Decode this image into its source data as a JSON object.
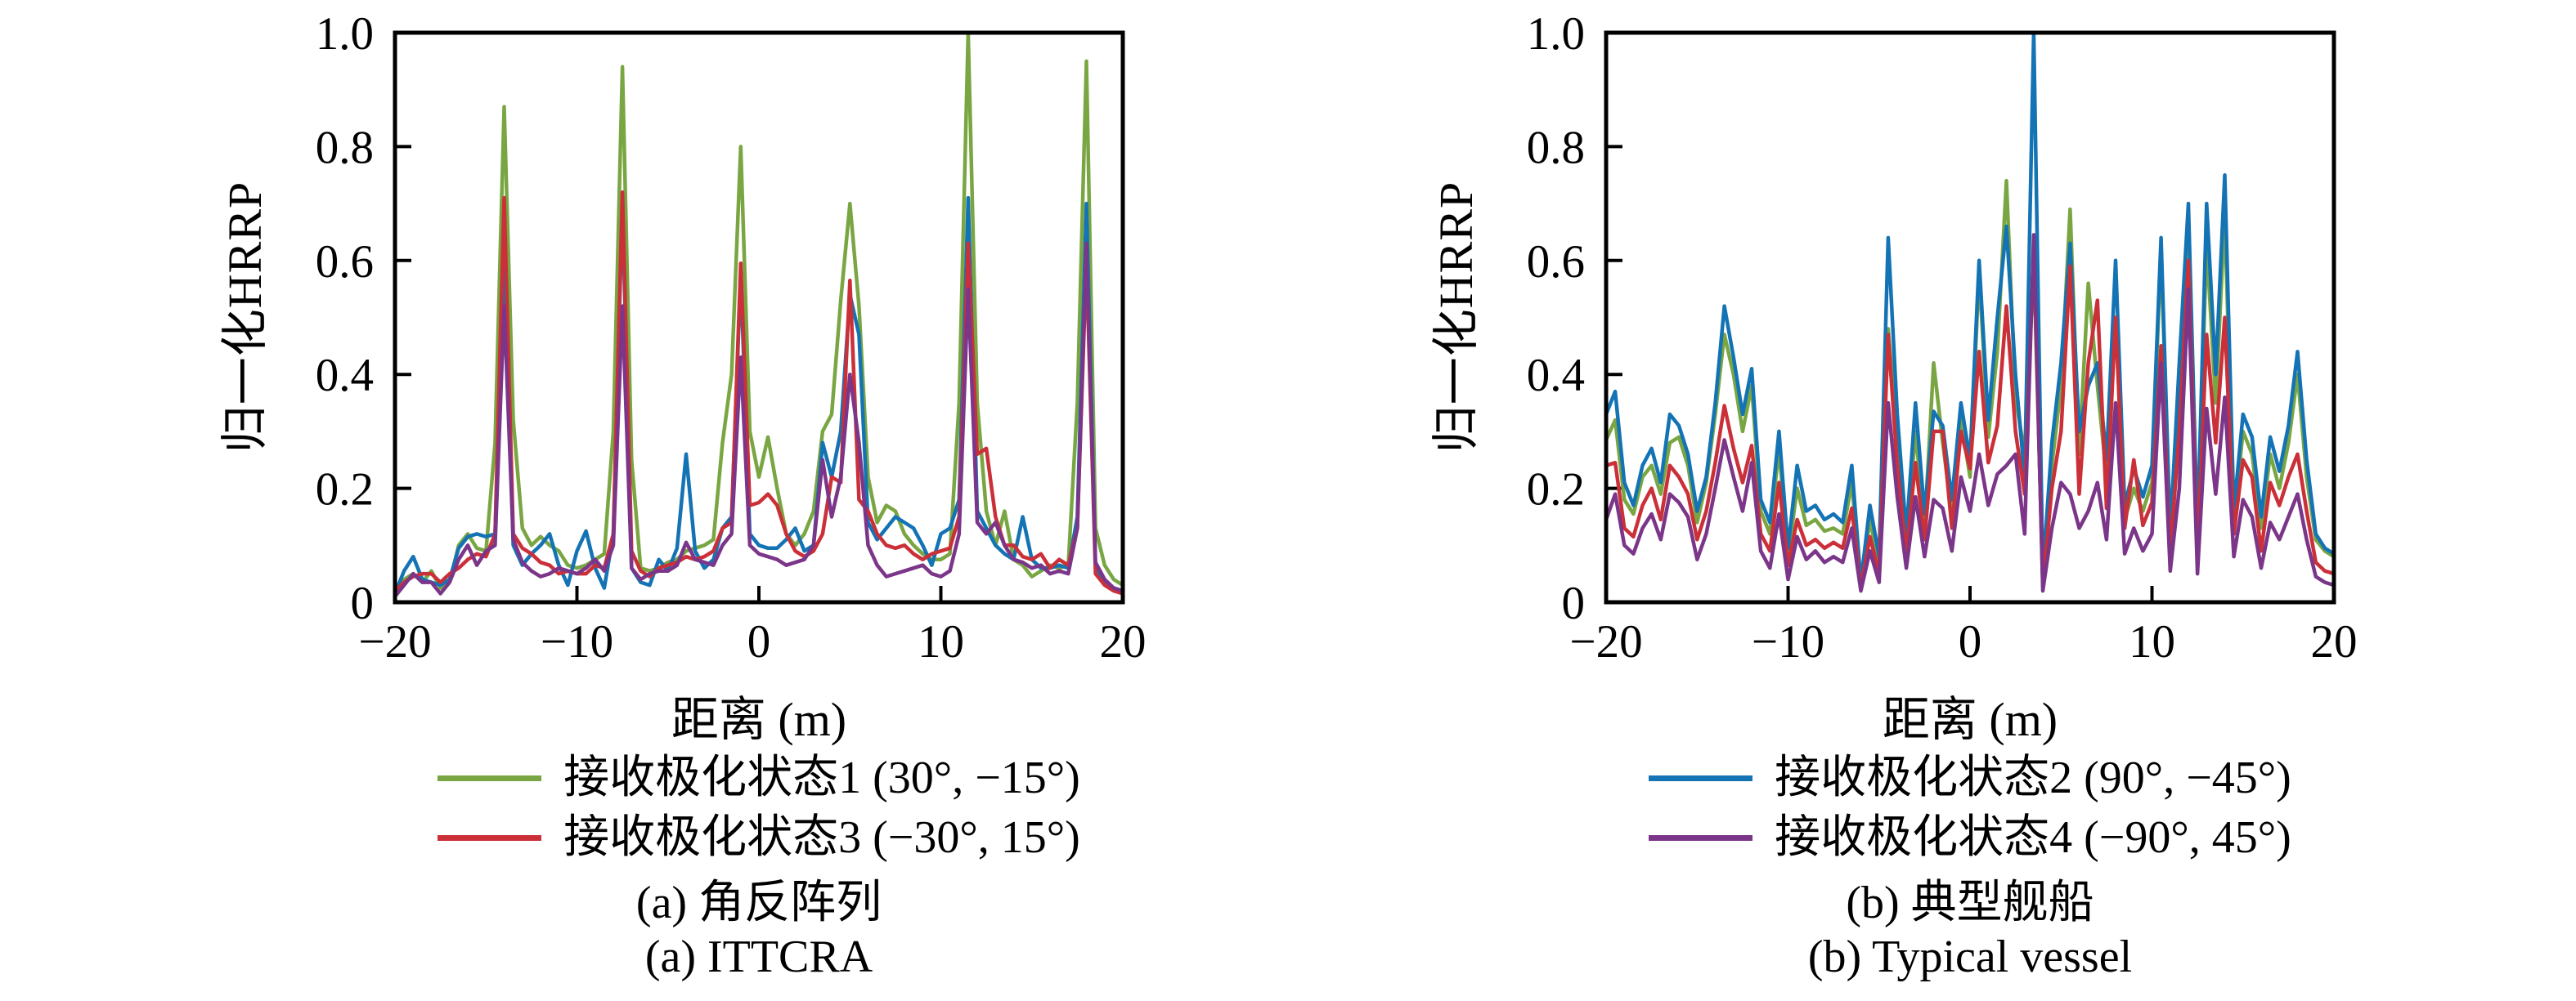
{
  "page": {
    "background": "#ffffff"
  },
  "panels": [
    {
      "ylabel": "归一化HRRP",
      "xlabel": "距离 (m)",
      "caption_line1": "(a) 角反阵列",
      "caption_line2": "(a) ITTCRA"
    },
    {
      "ylabel": "归一化HRRP",
      "xlabel": "距离 (m)",
      "caption_line1": "(b) 典型舰船",
      "caption_line2": "(b) Typical vessel"
    }
  ],
  "chart_data": [
    {
      "type": "line",
      "title": "(a) 角反阵列 / (a) ITTCRA",
      "xlabel": "距离 (m)",
      "ylabel": "归一化HRRP",
      "xlim": [
        -20,
        20
      ],
      "ylim": [
        0,
        1
      ],
      "xticks": [
        -20,
        -10,
        0,
        10,
        20
      ],
      "xtick_labels": [
        "−20",
        "−10",
        "0",
        "10",
        "20"
      ],
      "yticks": [
        0,
        0.2,
        0.4,
        0.6,
        0.8,
        1.0
      ],
      "ytick_labels": [
        "0",
        "0.2",
        "0.4",
        "0.6",
        "0.8",
        "1.0"
      ],
      "grid": false,
      "legend_position": "below",
      "legend_series": [
        0,
        2
      ],
      "x_start": -20,
      "x_step": 0.5,
      "series": [
        {
          "name": "接收极化状态1 (30°, −15°)",
          "color": "#79a642",
          "values": [
            0.01,
            0.04,
            0.05,
            0.035,
            0.055,
            0.025,
            0.035,
            0.1,
            0.12,
            0.095,
            0.09,
            0.28,
            0.87,
            0.32,
            0.13,
            0.1,
            0.115,
            0.1,
            0.09,
            0.065,
            0.06,
            0.065,
            0.075,
            0.085,
            0.3,
            0.94,
            0.25,
            0.06,
            0.055,
            0.06,
            0.07,
            0.075,
            0.09,
            0.095,
            0.1,
            0.11,
            0.28,
            0.4,
            0.8,
            0.3,
            0.22,
            0.29,
            0.2,
            0.12,
            0.1,
            0.12,
            0.16,
            0.3,
            0.33,
            0.53,
            0.7,
            0.52,
            0.22,
            0.14,
            0.17,
            0.16,
            0.12,
            0.1,
            0.085,
            0.075,
            0.075,
            0.085,
            0.35,
            1.0,
            0.35,
            0.16,
            0.1,
            0.16,
            0.075,
            0.065,
            0.045,
            0.055,
            0.065,
            0.06,
            0.065,
            0.35,
            0.95,
            0.13,
            0.065,
            0.04,
            0.03
          ]
        },
        {
          "name": "接收极化状态2 (90°, −45°)",
          "color": "#1473b4",
          "values": [
            0.015,
            0.055,
            0.08,
            0.04,
            0.035,
            0.03,
            0.04,
            0.095,
            0.115,
            0.12,
            0.115,
            0.12,
            0.63,
            0.1,
            0.065,
            0.085,
            0.1,
            0.12,
            0.065,
            0.03,
            0.09,
            0.125,
            0.06,
            0.025,
            0.12,
            0.7,
            0.06,
            0.035,
            0.03,
            0.075,
            0.055,
            0.095,
            0.26,
            0.09,
            0.06,
            0.075,
            0.13,
            0.15,
            0.575,
            0.12,
            0.1,
            0.095,
            0.095,
            0.11,
            0.13,
            0.09,
            0.1,
            0.28,
            0.22,
            0.3,
            0.54,
            0.47,
            0.14,
            0.11,
            0.13,
            0.15,
            0.14,
            0.13,
            0.1,
            0.065,
            0.12,
            0.13,
            0.18,
            0.71,
            0.16,
            0.13,
            0.1,
            0.085,
            0.075,
            0.15,
            0.075,
            0.06,
            0.06,
            0.065,
            0.06,
            0.15,
            0.7,
            0.06,
            0.035,
            0.025,
            0.02
          ]
        },
        {
          "name": "接收极化状态3 (−30°, 15°)",
          "color": "#cb3039",
          "values": [
            0.02,
            0.035,
            0.045,
            0.05,
            0.05,
            0.035,
            0.05,
            0.06,
            0.075,
            0.085,
            0.08,
            0.12,
            0.71,
            0.12,
            0.095,
            0.085,
            0.07,
            0.065,
            0.05,
            0.055,
            0.05,
            0.05,
            0.065,
            0.06,
            0.12,
            0.72,
            0.09,
            0.055,
            0.045,
            0.06,
            0.065,
            0.07,
            0.08,
            0.075,
            0.08,
            0.09,
            0.13,
            0.14,
            0.595,
            0.17,
            0.175,
            0.19,
            0.17,
            0.12,
            0.09,
            0.08,
            0.09,
            0.12,
            0.22,
            0.21,
            0.565,
            0.18,
            0.16,
            0.12,
            0.1,
            0.095,
            0.1,
            0.085,
            0.075,
            0.085,
            0.09,
            0.095,
            0.15,
            0.63,
            0.26,
            0.27,
            0.15,
            0.1,
            0.1,
            0.08,
            0.075,
            0.085,
            0.06,
            0.075,
            0.065,
            0.13,
            0.6,
            0.05,
            0.03,
            0.02,
            0.015
          ]
        },
        {
          "name": "接收极化状态4 (−90°, 45°)",
          "color": "#7b3589",
          "values": [
            0.01,
            0.03,
            0.05,
            0.035,
            0.035,
            0.015,
            0.035,
            0.075,
            0.1,
            0.065,
            0.09,
            0.1,
            0.52,
            0.11,
            0.07,
            0.055,
            0.045,
            0.05,
            0.06,
            0.055,
            0.05,
            0.06,
            0.075,
            0.055,
            0.1,
            0.52,
            0.06,
            0.04,
            0.05,
            0.055,
            0.055,
            0.065,
            0.105,
            0.075,
            0.07,
            0.065,
            0.1,
            0.12,
            0.43,
            0.1,
            0.085,
            0.08,
            0.075,
            0.065,
            0.07,
            0.075,
            0.1,
            0.25,
            0.15,
            0.22,
            0.4,
            0.28,
            0.1,
            0.065,
            0.045,
            0.05,
            0.055,
            0.06,
            0.065,
            0.05,
            0.045,
            0.055,
            0.12,
            0.55,
            0.14,
            0.12,
            0.14,
            0.1,
            0.075,
            0.07,
            0.06,
            0.065,
            0.05,
            0.055,
            0.05,
            0.13,
            0.63,
            0.07,
            0.04,
            0.025,
            0.02
          ]
        }
      ]
    },
    {
      "type": "line",
      "title": "(b) 典型舰船 / (b) Typical vessel",
      "xlabel": "距离 (m)",
      "ylabel": "归一化HRRP",
      "xlim": [
        -20,
        20
      ],
      "ylim": [
        0,
        1
      ],
      "xticks": [
        -20,
        -10,
        0,
        10,
        20
      ],
      "xtick_labels": [
        "−20",
        "−10",
        "0",
        "10",
        "20"
      ],
      "yticks": [
        0,
        0.2,
        0.4,
        0.6,
        0.8,
        1.0
      ],
      "ytick_labels": [
        "0",
        "0.2",
        "0.4",
        "0.6",
        "0.8",
        "1.0"
      ],
      "grid": false,
      "legend_position": "below",
      "legend_series": [
        1,
        3
      ],
      "x_start": -20,
      "x_step": 0.5,
      "series": [
        {
          "name": "接收极化状态1 (30°, −15°)",
          "color": "#79a642",
          "values": [
            0.285,
            0.32,
            0.18,
            0.155,
            0.22,
            0.24,
            0.19,
            0.28,
            0.29,
            0.24,
            0.14,
            0.21,
            0.33,
            0.47,
            0.4,
            0.3,
            0.38,
            0.16,
            0.12,
            0.27,
            0.08,
            0.2,
            0.135,
            0.145,
            0.125,
            0.13,
            0.12,
            0.21,
            0.03,
            0.145,
            0.065,
            0.48,
            0.29,
            0.1,
            0.3,
            0.13,
            0.42,
            0.28,
            0.155,
            0.32,
            0.22,
            0.58,
            0.29,
            0.44,
            0.74,
            0.36,
            0.26,
            0.6,
            0.04,
            0.24,
            0.38,
            0.69,
            0.26,
            0.56,
            0.38,
            0.22,
            0.5,
            0.145,
            0.2,
            0.16,
            0.21,
            0.62,
            0.1,
            0.35,
            0.62,
            0.1,
            0.63,
            0.35,
            0.68,
            0.14,
            0.3,
            0.26,
            0.13,
            0.26,
            0.2,
            0.28,
            0.4,
            0.22,
            0.11,
            0.09,
            0.08
          ]
        },
        {
          "name": "接收极化状态2 (90°, −45°)",
          "color": "#1473b4",
          "values": [
            0.33,
            0.37,
            0.21,
            0.17,
            0.24,
            0.27,
            0.21,
            0.33,
            0.31,
            0.26,
            0.16,
            0.22,
            0.35,
            0.52,
            0.43,
            0.33,
            0.41,
            0.18,
            0.14,
            0.3,
            0.095,
            0.24,
            0.16,
            0.17,
            0.145,
            0.155,
            0.14,
            0.24,
            0.035,
            0.17,
            0.08,
            0.64,
            0.33,
            0.12,
            0.35,
            0.155,
            0.335,
            0.31,
            0.18,
            0.35,
            0.25,
            0.6,
            0.32,
            0.5,
            0.66,
            0.4,
            0.22,
            1.0,
            0.05,
            0.28,
            0.42,
            0.63,
            0.3,
            0.38,
            0.42,
            0.25,
            0.6,
            0.17,
            0.235,
            0.185,
            0.24,
            0.64,
            0.12,
            0.42,
            0.7,
            0.12,
            0.7,
            0.4,
            0.75,
            0.16,
            0.33,
            0.29,
            0.15,
            0.29,
            0.23,
            0.31,
            0.44,
            0.25,
            0.12,
            0.095,
            0.085
          ]
        },
        {
          "name": "接收极化状态3 (−30°, 15°)",
          "color": "#cb3039",
          "values": [
            0.24,
            0.245,
            0.13,
            0.115,
            0.17,
            0.2,
            0.145,
            0.24,
            0.22,
            0.19,
            0.11,
            0.16,
            0.245,
            0.345,
            0.27,
            0.21,
            0.275,
            0.12,
            0.09,
            0.21,
            0.065,
            0.145,
            0.1,
            0.11,
            0.095,
            0.105,
            0.095,
            0.165,
            0.025,
            0.115,
            0.05,
            0.47,
            0.24,
            0.085,
            0.245,
            0.11,
            0.3,
            0.3,
            0.13,
            0.3,
            0.235,
            0.44,
            0.245,
            0.31,
            0.52,
            0.3,
            0.19,
            0.62,
            0.03,
            0.2,
            0.3,
            0.59,
            0.19,
            0.42,
            0.53,
            0.165,
            0.5,
            0.13,
            0.25,
            0.135,
            0.175,
            0.45,
            0.085,
            0.3,
            0.6,
            0.08,
            0.47,
            0.28,
            0.5,
            0.12,
            0.25,
            0.22,
            0.09,
            0.21,
            0.17,
            0.22,
            0.26,
            0.16,
            0.07,
            0.055,
            0.05
          ]
        },
        {
          "name": "接收极化状态4 (−90°, 45°)",
          "color": "#7b3589",
          "values": [
            0.145,
            0.19,
            0.1,
            0.085,
            0.13,
            0.155,
            0.11,
            0.19,
            0.175,
            0.15,
            0.075,
            0.12,
            0.2,
            0.285,
            0.22,
            0.16,
            0.245,
            0.09,
            0.06,
            0.155,
            0.04,
            0.115,
            0.075,
            0.09,
            0.07,
            0.08,
            0.07,
            0.13,
            0.02,
            0.09,
            0.035,
            0.35,
            0.185,
            0.06,
            0.185,
            0.08,
            0.18,
            0.165,
            0.09,
            0.22,
            0.16,
            0.26,
            0.17,
            0.225,
            0.24,
            0.26,
            0.12,
            0.645,
            0.02,
            0.13,
            0.21,
            0.19,
            0.13,
            0.16,
            0.21,
            0.11,
            0.35,
            0.085,
            0.13,
            0.09,
            0.12,
            0.42,
            0.055,
            0.2,
            0.55,
            0.05,
            0.34,
            0.19,
            0.36,
            0.08,
            0.18,
            0.15,
            0.06,
            0.14,
            0.11,
            0.15,
            0.19,
            0.11,
            0.045,
            0.035,
            0.03
          ]
        }
      ]
    }
  ]
}
